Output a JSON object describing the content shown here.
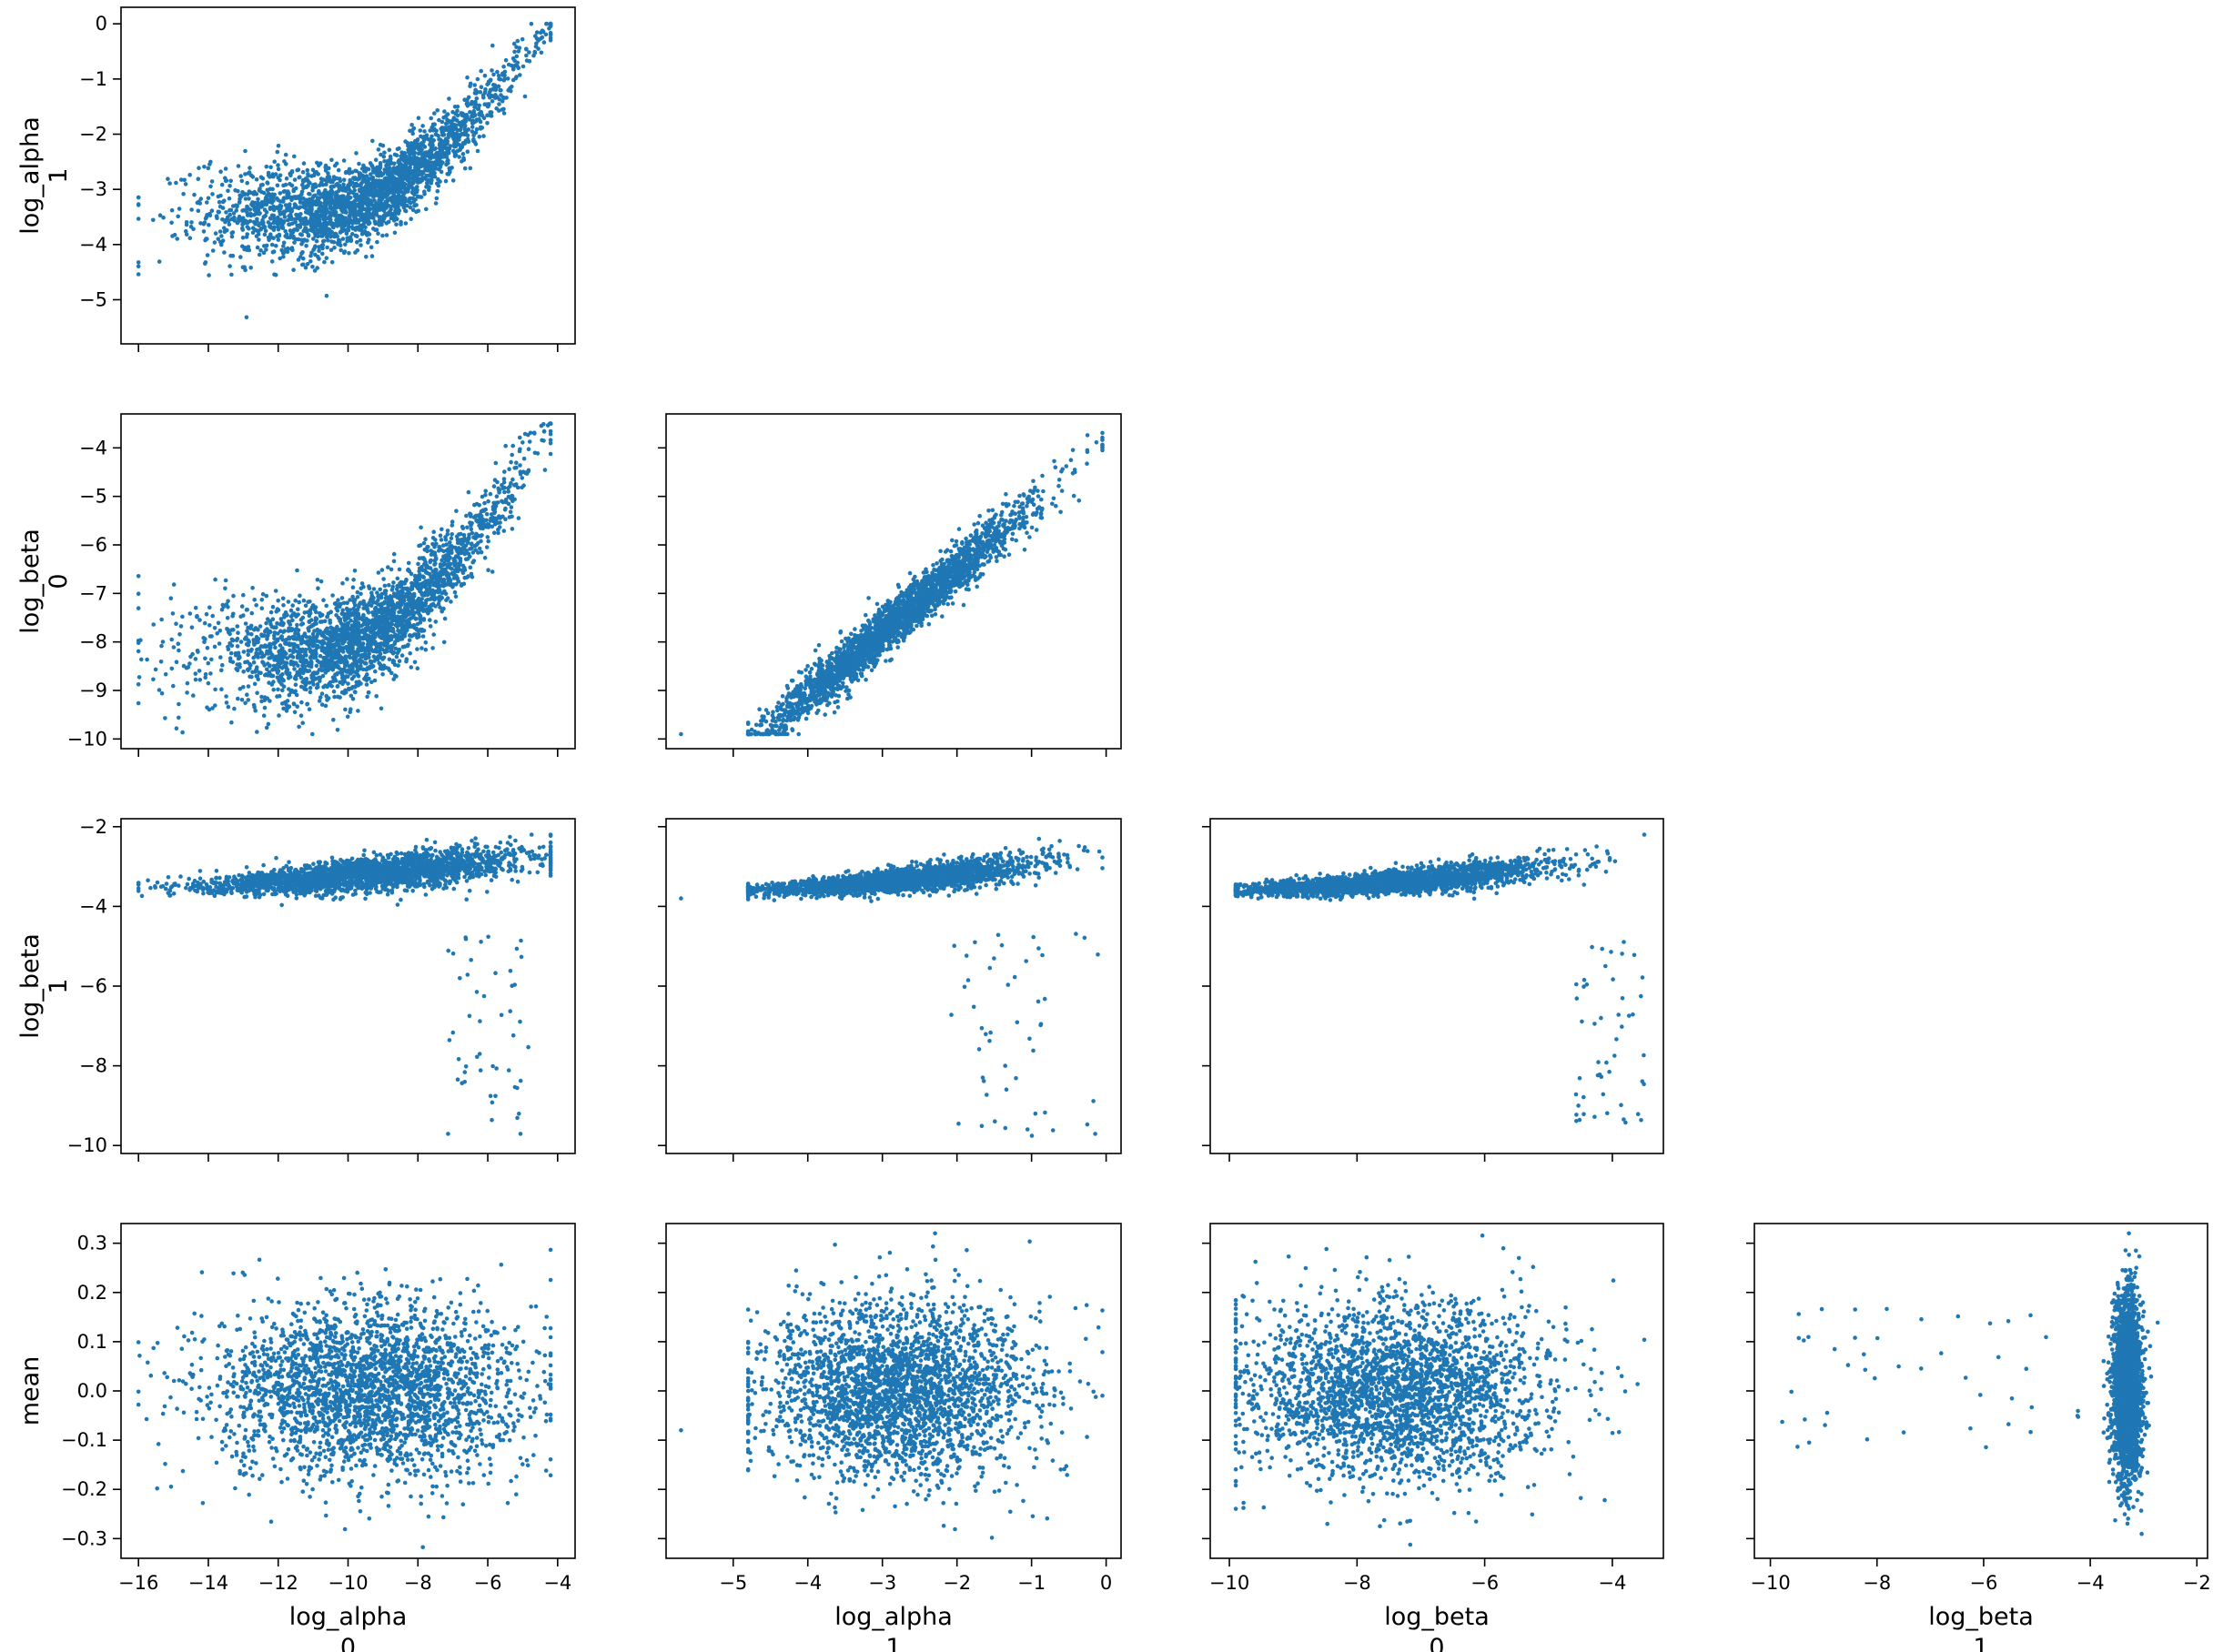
{
  "figure": {
    "type": "pair plot",
    "point_color": "#1f77b4",
    "note": ""
  },
  "chart_data": [
    {
      "type": "scatter",
      "title": "",
      "x_var": "log_alpha\n0",
      "y_var": "log_alpha\n1",
      "xlim": [
        -16.5,
        -3.5
      ],
      "ylim": [
        -5.8,
        0.3
      ],
      "xticks": [
        -16,
        -14,
        -12,
        -10,
        -8,
        -6,
        -4
      ],
      "yticks": [
        -5,
        -4,
        -3,
        -2,
        -1,
        0
      ],
      "show_x_ticklabels": false,
      "ylabel_lines": [
        "log_alpha",
        "1"
      ],
      "xlabel_lines": [],
      "grid": false,
      "points": {
        "n": 2600,
        "x_center": -9.5,
        "x_sd": 2.2,
        "x_min": -16,
        "x_max": -4.2,
        "y_intercept": -3.4,
        "y_curve": "quadratic-rise",
        "y_sd": 0.45,
        "y_min": -5.7,
        "y_max": 0
      }
    },
    {
      "type": "scatter",
      "title": "",
      "x_var": "log_alpha\n0",
      "y_var": "log_beta\n0",
      "xlim": [
        -16.5,
        -3.5
      ],
      "ylim": [
        -10.2,
        -3.3
      ],
      "xticks": [
        -16,
        -14,
        -12,
        -10,
        -8,
        -6,
        -4
      ],
      "yticks": [
        -10,
        -9,
        -8,
        -7,
        -6,
        -5,
        -4
      ],
      "show_x_ticklabels": false,
      "ylabel_lines": [
        "log_beta",
        "0"
      ],
      "xlabel_lines": [],
      "grid": false,
      "points": {
        "n": 2600,
        "x_center": -9.5,
        "x_sd": 2.2,
        "x_min": -16,
        "x_max": -4.2,
        "y_intercept": -8.2,
        "y_curve": "quadratic-rise",
        "y_sd": 0.6,
        "y_min": -9.9,
        "y_max": -3.5
      }
    },
    {
      "type": "scatter",
      "title": "",
      "x_var": "log_alpha\n1",
      "y_var": "log_beta\n0",
      "xlim": [
        -5.9,
        0.2
      ],
      "ylim": [
        -10.2,
        -3.3
      ],
      "xticks": [
        -5,
        -4,
        -3,
        -2,
        -1,
        0
      ],
      "yticks": [
        -10,
        -9,
        -8,
        -7,
        -6,
        -5,
        -4
      ],
      "show_x_ticklabels": false,
      "show_y_ticklabels": false,
      "ylabel_lines": [],
      "xlabel_lines": [],
      "grid": false,
      "points": {
        "n": 2600,
        "x_center": -2.8,
        "x_sd": 0.9,
        "x_min": -4.8,
        "x_max": -0.05,
        "slope": 1.3,
        "y_at_x0": -3.9,
        "y_sd": 0.25,
        "y_min": -9.9,
        "y_max": -3.5,
        "outliers": [
          [
            -5.7,
            -9.9
          ]
        ]
      }
    },
    {
      "type": "scatter",
      "title": "",
      "x_var": "log_alpha\n0",
      "y_var": "log_beta\n1",
      "xlim": [
        -16.5,
        -3.5
      ],
      "ylim": [
        -10.2,
        -1.8
      ],
      "xticks": [
        -16,
        -14,
        -12,
        -10,
        -8,
        -6,
        -4
      ],
      "yticks": [
        -10,
        -8,
        -6,
        -4,
        -2
      ],
      "show_x_ticklabels": false,
      "ylabel_lines": [
        "log_beta",
        "1"
      ],
      "xlabel_lines": [],
      "grid": false,
      "points": {
        "n": 2600,
        "x_center": -9.5,
        "x_sd": 2.2,
        "x_min": -16,
        "x_max": -4.2,
        "y_start": -3.55,
        "y_end": -2.7,
        "y_sd": 0.12,
        "y_min": -4.1,
        "y_max": -2.2,
        "tail_x_range": [
          -7.2,
          -4.8
        ],
        "tail_y_range": [
          -9.8,
          -4.6
        ],
        "tail_n": 50
      }
    },
    {
      "type": "scatter",
      "title": "",
      "x_var": "log_alpha\n1",
      "y_var": "log_beta\n1",
      "xlim": [
        -5.9,
        0.2
      ],
      "ylim": [
        -10.2,
        -1.8
      ],
      "xticks": [
        -5,
        -4,
        -3,
        -2,
        -1,
        0
      ],
      "yticks": [
        -10,
        -8,
        -6,
        -4,
        -2
      ],
      "show_x_ticklabels": false,
      "show_y_ticklabels": false,
      "ylabel_lines": [],
      "xlabel_lines": [],
      "grid": false,
      "points": {
        "n": 2600,
        "x_center": -2.8,
        "x_sd": 0.9,
        "x_min": -4.8,
        "x_max": -0.05,
        "y_start": -3.6,
        "y_end": -2.7,
        "y_sd": 0.1,
        "y_min": -4.1,
        "y_max": -2.2,
        "tail_x_range": [
          -2.2,
          -0.1
        ],
        "tail_y_range": [
          -9.8,
          -4.6
        ],
        "tail_n": 50,
        "outliers": [
          [
            -5.7,
            -3.8
          ]
        ]
      }
    },
    {
      "type": "scatter",
      "title": "",
      "x_var": "log_beta\n0",
      "y_var": "log_beta\n1",
      "xlim": [
        -10.3,
        -3.2
      ],
      "ylim": [
        -10.2,
        -1.8
      ],
      "xticks": [
        -10,
        -8,
        -6,
        -4
      ],
      "yticks": [
        -10,
        -8,
        -6,
        -4,
        -2
      ],
      "show_x_ticklabels": false,
      "show_y_ticklabels": false,
      "ylabel_lines": [],
      "xlabel_lines": [],
      "grid": false,
      "points": {
        "n": 2600,
        "x_center": -7.4,
        "x_sd": 1.2,
        "x_min": -9.9,
        "x_max": -3.5,
        "y_start": -3.6,
        "y_end": -2.7,
        "y_sd": 0.1,
        "y_min": -4.1,
        "y_max": -2.2,
        "tail_x_range": [
          -4.6,
          -3.5
        ],
        "tail_y_range": [
          -9.8,
          -4.6
        ],
        "tail_n": 50
      }
    },
    {
      "type": "scatter",
      "title": "",
      "x_var": "log_alpha\n0",
      "y_var": "mean",
      "xlim": [
        -16.5,
        -3.5
      ],
      "ylim": [
        -0.34,
        0.34
      ],
      "xticks": [
        -16,
        -14,
        -12,
        -10,
        -8,
        -6,
        -4
      ],
      "yticks": [
        -0.3,
        -0.2,
        -0.1,
        0.0,
        0.1,
        0.2,
        0.3
      ],
      "xticklabels": [
        "−16",
        "−14",
        "−12",
        "−10",
        "−8",
        "−6",
        "−4"
      ],
      "yticklabels": [
        "−0.3",
        "−0.2",
        "−0.1",
        "0.0",
        "0.1",
        "0.2",
        "0.3"
      ],
      "show_x_ticklabels": true,
      "ylabel_lines": [
        "mean"
      ],
      "xlabel_lines": [
        "log_alpha",
        "0"
      ],
      "grid": false,
      "points": {
        "n": 2600,
        "x_center": -9.5,
        "x_sd": 2.2,
        "x_min": -16,
        "x_max": -4.2,
        "y_center": 0.0,
        "y_sd": 0.09,
        "y_min": -0.32,
        "y_max": 0.32
      }
    },
    {
      "type": "scatter",
      "title": "",
      "x_var": "log_alpha\n1",
      "y_var": "mean",
      "xlim": [
        -5.9,
        0.2
      ],
      "ylim": [
        -0.34,
        0.34
      ],
      "xticks": [
        -5,
        -4,
        -3,
        -2,
        -1,
        0
      ],
      "yticks": [
        -0.3,
        -0.2,
        -0.1,
        0.0,
        0.1,
        0.2,
        0.3
      ],
      "xticklabels": [
        "−5",
        "−4",
        "−3",
        "−2",
        "−1",
        "0"
      ],
      "show_x_ticklabels": true,
      "show_y_ticklabels": false,
      "ylabel_lines": [],
      "xlabel_lines": [
        "log_alpha",
        "1"
      ],
      "grid": false,
      "points": {
        "n": 2600,
        "x_center": -2.8,
        "x_sd": 0.9,
        "x_min": -4.8,
        "x_max": -0.05,
        "y_center": 0.0,
        "y_sd": 0.09,
        "y_min": -0.32,
        "y_max": 0.32,
        "outliers": [
          [
            -5.7,
            -0.08
          ]
        ]
      }
    },
    {
      "type": "scatter",
      "title": "",
      "x_var": "log_beta\n0",
      "y_var": "mean",
      "xlim": [
        -10.3,
        -3.2
      ],
      "ylim": [
        -0.34,
        0.34
      ],
      "xticks": [
        -10,
        -8,
        -6,
        -4
      ],
      "yticks": [
        -0.3,
        -0.2,
        -0.1,
        0.0,
        0.1,
        0.2,
        0.3
      ],
      "xticklabels": [
        "−10",
        "−8",
        "−6",
        "−4"
      ],
      "show_x_ticklabels": true,
      "show_y_ticklabels": false,
      "ylabel_lines": [],
      "xlabel_lines": [
        "log_beta",
        "0"
      ],
      "grid": false,
      "points": {
        "n": 2600,
        "x_center": -7.4,
        "x_sd": 1.2,
        "x_min": -9.9,
        "x_max": -3.5,
        "y_center": 0.0,
        "y_sd": 0.09,
        "y_min": -0.32,
        "y_max": 0.32
      }
    },
    {
      "type": "scatter",
      "title": "",
      "x_var": "log_beta\n1",
      "y_var": "mean",
      "xlim": [
        -10.3,
        -1.8
      ],
      "ylim": [
        -0.34,
        0.34
      ],
      "xticks": [
        -10,
        -8,
        -6,
        -4,
        -2
      ],
      "yticks": [
        -0.3,
        -0.2,
        -0.1,
        0.0,
        0.1,
        0.2,
        0.3
      ],
      "xticklabels": [
        "−10",
        "−8",
        "−6",
        "−4",
        "−2"
      ],
      "show_x_ticklabels": true,
      "show_y_ticklabels": false,
      "ylabel_lines": [],
      "xlabel_lines": [
        "log_beta",
        "1"
      ],
      "grid": false,
      "points": {
        "n": 2600,
        "x_center": -3.3,
        "x_sd": 0.13,
        "x_min": -3.75,
        "x_max": -2.7,
        "y_center": 0.0,
        "y_sd": 0.09,
        "y_min": -0.32,
        "y_max": 0.32,
        "tail_x_range": [
          -9.9,
          -4.2
        ],
        "tail_y_range": [
          -0.12,
          0.18
        ],
        "tail_n": 45
      }
    }
  ]
}
